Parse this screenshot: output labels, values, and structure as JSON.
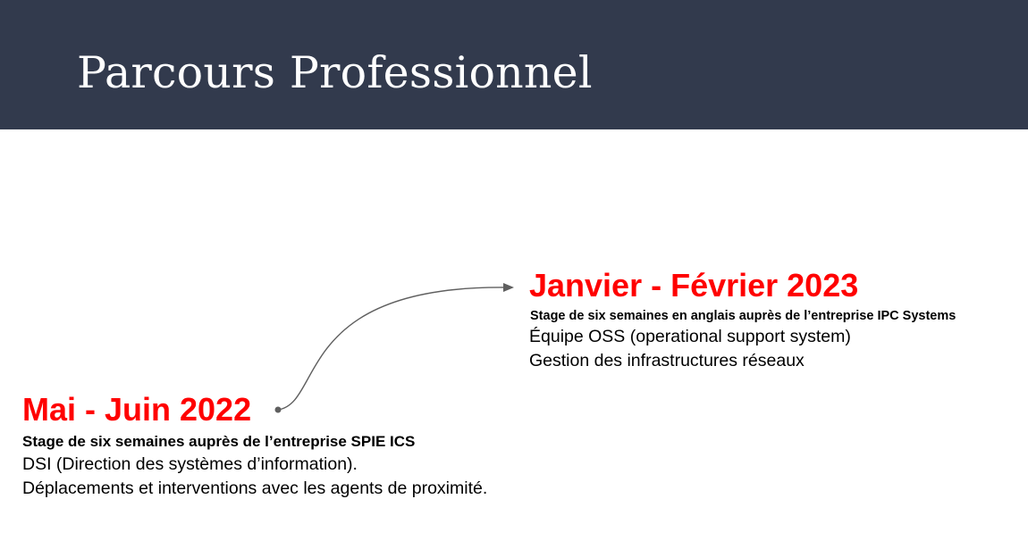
{
  "header": {
    "title": "Parcours Professionnel",
    "background": "#323a4d"
  },
  "timeline": {
    "accent_color": "#ff0000",
    "entries": [
      {
        "date": "Janvier - Février 2023",
        "headline": "Stage de six semaines en anglais auprès de l’entreprise IPC Systems",
        "details": [
          "Équipe OSS (operational support system)",
          "Gestion des infrastructures réseaux"
        ]
      },
      {
        "date": "Mai - Juin 2022",
        "headline": "Stage de six semaines auprès de l’entreprise SPIE ICS",
        "details": [
          "DSI (Direction des systèmes d’information).",
          "Déplacements et interventions avec les agents de proximité."
        ]
      }
    ],
    "connector_icon": "curved-arrow-icon"
  }
}
